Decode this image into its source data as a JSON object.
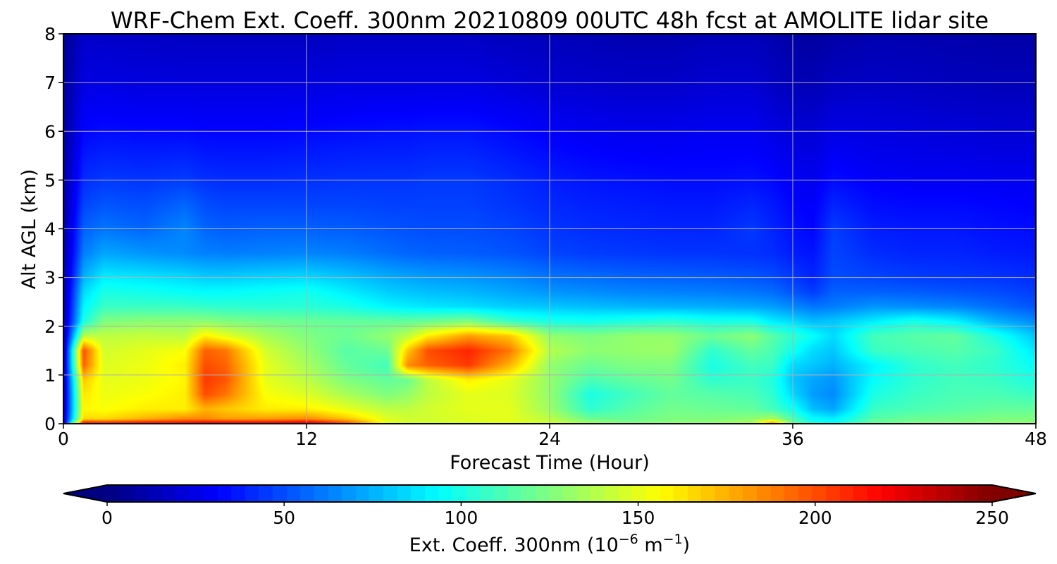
{
  "chart_data": {
    "type": "heatmap",
    "title": "WRF-Chem Ext. Coeff. 300nm  20210809 00UTC 48h fcst at AMOLITE lidar site",
    "xlabel": "Forecast Time (Hour)",
    "ylabel": "Alt AGL (km)",
    "xlim": [
      0,
      48
    ],
    "ylim": [
      0,
      8
    ],
    "x_ticks": [
      0,
      12,
      24,
      36,
      48
    ],
    "y_ticks": [
      0,
      1,
      2,
      3,
      4,
      5,
      6,
      7,
      8
    ],
    "grid": true,
    "colorbar": {
      "label_main": "Ext. Coeff. 300nm  (10",
      "label_exp1": "−6",
      "label_unit": " m",
      "label_exp2": "−1",
      "label_end": ")",
      "range": [
        0,
        250
      ],
      "ticks": [
        0,
        50,
        100,
        150,
        200,
        250
      ],
      "extend": "both",
      "colormap": "jet",
      "placement": "bottom"
    },
    "x": [
      0,
      1,
      2,
      4,
      6,
      7,
      8,
      10,
      12,
      14,
      16,
      17,
      18,
      20,
      22,
      24,
      26,
      28,
      30,
      32,
      34,
      35,
      36,
      37,
      38,
      40,
      42,
      44,
      46,
      48
    ],
    "y": [
      0,
      0.1,
      0.3,
      0.6,
      0.9,
      1.2,
      1.5,
      1.8,
      2.1,
      2.4,
      2.7,
      3,
      3.5,
      4,
      4.5,
      5,
      6,
      7,
      8
    ],
    "z": [
      [
        15,
        225,
        220,
        225,
        225,
        230,
        230,
        230,
        235,
        205,
        150,
        145,
        145,
        148,
        150,
        145,
        135,
        125,
        128,
        130,
        138,
        190,
        120,
        100,
        95,
        120,
        125,
        125,
        128,
        130
      ],
      [
        15,
        165,
        165,
        175,
        185,
        185,
        180,
        180,
        185,
        170,
        148,
        145,
        145,
        148,
        150,
        140,
        120,
        120,
        125,
        125,
        128,
        135,
        112,
        95,
        90,
        115,
        120,
        122,
        125,
        125
      ],
      [
        12,
        158,
        155,
        160,
        160,
        175,
        170,
        160,
        160,
        150,
        140,
        140,
        145,
        150,
        150,
        132,
        105,
        115,
        122,
        120,
        118,
        110,
        98,
        78,
        72,
        108,
        112,
        115,
        118,
        118
      ],
      [
        10,
        162,
        152,
        155,
        160,
        200,
        190,
        155,
        148,
        135,
        125,
        130,
        140,
        150,
        148,
        130,
        100,
        110,
        118,
        115,
        112,
        105,
        85,
        70,
        65,
        100,
        108,
        112,
        112,
        108
      ],
      [
        10,
        170,
        150,
        152,
        158,
        205,
        198,
        150,
        140,
        125,
        118,
        120,
        140,
        160,
        150,
        130,
        112,
        118,
        122,
        105,
        108,
        102,
        80,
        72,
        68,
        95,
        105,
        110,
        108,
        100
      ],
      [
        10,
        195,
        148,
        152,
        160,
        200,
        195,
        150,
        135,
        118,
        110,
        185,
        195,
        205,
        175,
        130,
        120,
        125,
        125,
        100,
        110,
        108,
        85,
        80,
        75,
        92,
        105,
        110,
        105,
        95
      ],
      [
        8,
        200,
        145,
        150,
        155,
        195,
        190,
        145,
        130,
        115,
        120,
        170,
        200,
        210,
        190,
        138,
        128,
        130,
        132,
        105,
        118,
        112,
        98,
        85,
        80,
        108,
        112,
        115,
        108,
        88
      ],
      [
        8,
        140,
        140,
        142,
        140,
        160,
        150,
        135,
        125,
        120,
        130,
        140,
        160,
        180,
        170,
        130,
        125,
        130,
        130,
        120,
        128,
        115,
        105,
        95,
        85,
        110,
        115,
        118,
        100,
        80
      ],
      [
        8,
        100,
        125,
        128,
        128,
        128,
        125,
        122,
        120,
        118,
        118,
        118,
        120,
        125,
        108,
        100,
        98,
        102,
        105,
        100,
        100,
        90,
        85,
        78,
        80,
        90,
        100,
        92,
        75,
        65
      ],
      [
        8,
        92,
        108,
        108,
        108,
        106,
        105,
        104,
        104,
        100,
        92,
        90,
        88,
        86,
        82,
        80,
        78,
        76,
        75,
        74,
        72,
        70,
        65,
        60,
        62,
        68,
        66,
        64,
        58,
        52
      ],
      [
        8,
        85,
        100,
        98,
        95,
        94,
        94,
        96,
        98,
        90,
        82,
        80,
        78,
        76,
        72,
        68,
        66,
        64,
        63,
        62,
        60,
        58,
        52,
        46,
        55,
        55,
        54,
        52,
        50,
        46
      ],
      [
        8,
        75,
        90,
        88,
        85,
        82,
        82,
        84,
        85,
        80,
        74,
        72,
        70,
        68,
        65,
        60,
        58,
        56,
        55,
        54,
        52,
        50,
        45,
        40,
        50,
        48,
        46,
        45,
        44,
        42
      ],
      [
        8,
        62,
        72,
        68,
        65,
        63,
        62,
        63,
        64,
        62,
        58,
        56,
        55,
        54,
        52,
        48,
        46,
        45,
        44,
        44,
        43,
        42,
        38,
        36,
        48,
        42,
        40,
        40,
        38,
        37
      ],
      [
        8,
        55,
        60,
        56,
        64,
        56,
        54,
        55,
        55,
        54,
        52,
        51,
        50,
        50,
        48,
        44,
        42,
        41,
        40,
        40,
        45,
        40,
        35,
        32,
        46,
        38,
        37,
        37,
        35,
        34
      ],
      [
        8,
        48,
        52,
        50,
        56,
        50,
        48,
        48,
        48,
        48,
        47,
        47,
        47,
        47,
        44,
        41,
        39,
        38,
        37,
        37,
        40,
        37,
        32,
        30,
        40,
        34,
        33,
        33,
        32,
        31
      ],
      [
        8,
        42,
        45,
        44,
        46,
        43,
        42,
        42,
        43,
        44,
        44,
        44,
        45,
        45,
        42,
        38,
        36,
        35,
        34,
        34,
        35,
        33,
        29,
        27,
        34,
        30,
        29,
        29,
        28,
        28
      ],
      [
        7,
        32,
        34,
        33,
        33,
        32,
        32,
        32,
        33,
        34,
        35,
        35,
        36,
        36,
        33,
        30,
        28,
        27,
        27,
        28,
        28,
        25,
        22,
        21,
        25,
        24,
        23,
        22,
        21,
        21
      ],
      [
        6,
        24,
        24,
        23,
        23,
        23,
        23,
        23,
        23,
        24,
        24,
        24,
        24,
        24,
        22,
        20,
        19,
        18,
        18,
        20,
        20,
        17,
        14,
        13,
        16,
        17,
        16,
        15,
        14,
        14
      ],
      [
        5,
        18,
        18,
        17,
        16,
        16,
        16,
        16,
        16,
        17,
        17,
        17,
        17,
        17,
        15,
        14,
        13,
        12,
        12,
        14,
        14,
        12,
        9,
        8,
        10,
        12,
        12,
        11,
        10,
        10
      ]
    ]
  }
}
